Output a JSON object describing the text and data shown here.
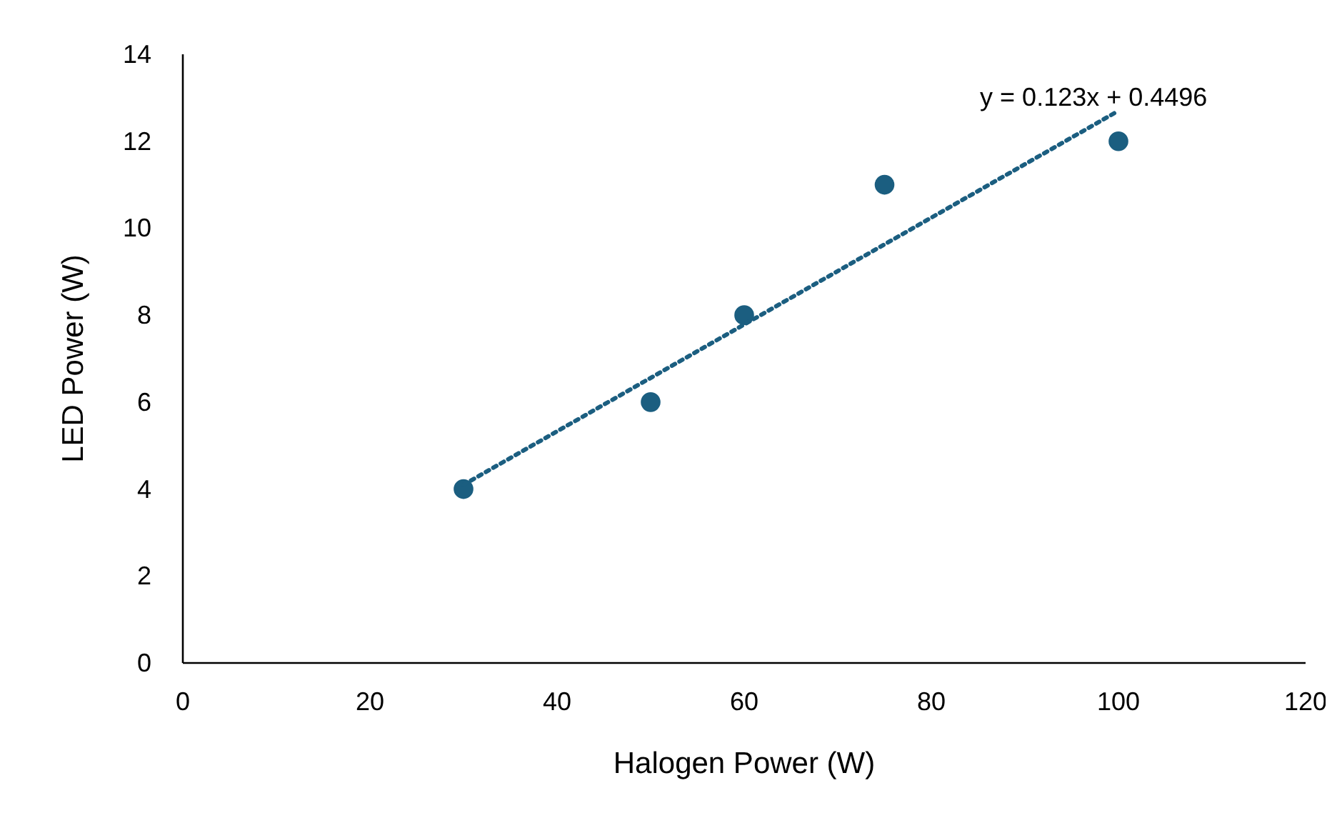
{
  "chart_data": {
    "type": "scatter",
    "xlabel": "Halogen Power (W)",
    "ylabel": "LED Power (W)",
    "xlim": [
      0,
      120
    ],
    "xticks": [
      0,
      20,
      40,
      60,
      80,
      100,
      120
    ],
    "ylim": [
      0,
      14
    ],
    "yticks": [
      0,
      2,
      4,
      6,
      8,
      10,
      12,
      14
    ],
    "grid": false,
    "marker": "circle",
    "annotations": [
      "y = 0.123x + 0.4496"
    ],
    "series": [
      {
        "color": "#1b5e80",
        "x": [
          30,
          50,
          60,
          75,
          100
        ],
        "values": [
          4,
          6,
          8,
          11,
          12
        ]
      },
      {
        "type": "line",
        "color": "#1b5e80",
        "x": [
          30,
          100
        ],
        "values": [
          4.1,
          12.7
        ],
        "line_style": "dotted",
        "marker": "none"
      }
    ]
  }
}
